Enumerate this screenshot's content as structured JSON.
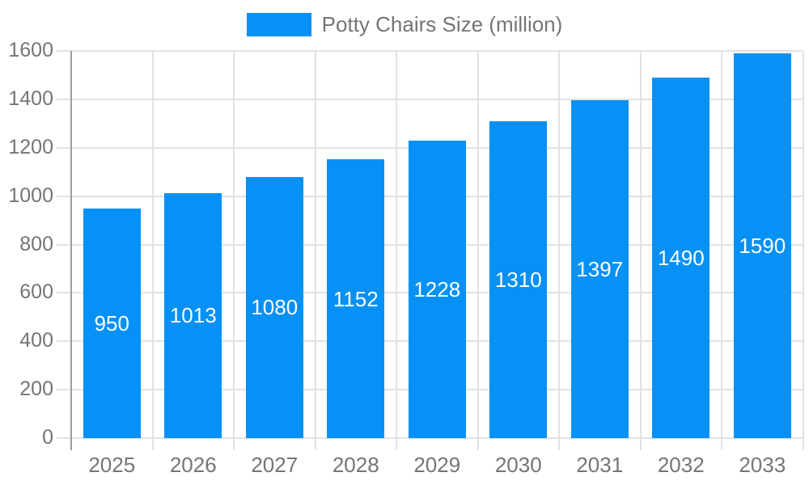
{
  "legend": {
    "label": "Potty Chairs Size (million)"
  },
  "colors": {
    "bar": "#0591f5",
    "grid": "#e2e2e2",
    "axis_line": "#9b9b9b",
    "tick_text": "#757575",
    "bar_label_text": "#ffffff",
    "background": "#ffffff"
  },
  "chart_data": {
    "type": "bar",
    "title": "",
    "xlabel": "",
    "ylabel": "",
    "categories": [
      "2025",
      "2026",
      "2027",
      "2028",
      "2029",
      "2030",
      "2031",
      "2032",
      "2033"
    ],
    "series": [
      {
        "name": "Potty Chairs Size (million)",
        "values": [
          950,
          1013,
          1080,
          1152,
          1228,
          1310,
          1397,
          1490,
          1590
        ]
      }
    ],
    "data_labels": [
      "950",
      "1013",
      "1080",
      "1152",
      "1228",
      "1310",
      "1397",
      "1490",
      "1590"
    ],
    "ylim": [
      0,
      1600
    ],
    "yticks": [
      0,
      200,
      400,
      600,
      800,
      1000,
      1200,
      1400,
      1600
    ],
    "grid": "on",
    "legend_position": "top-center",
    "bar_labels": "inside-center-white"
  }
}
